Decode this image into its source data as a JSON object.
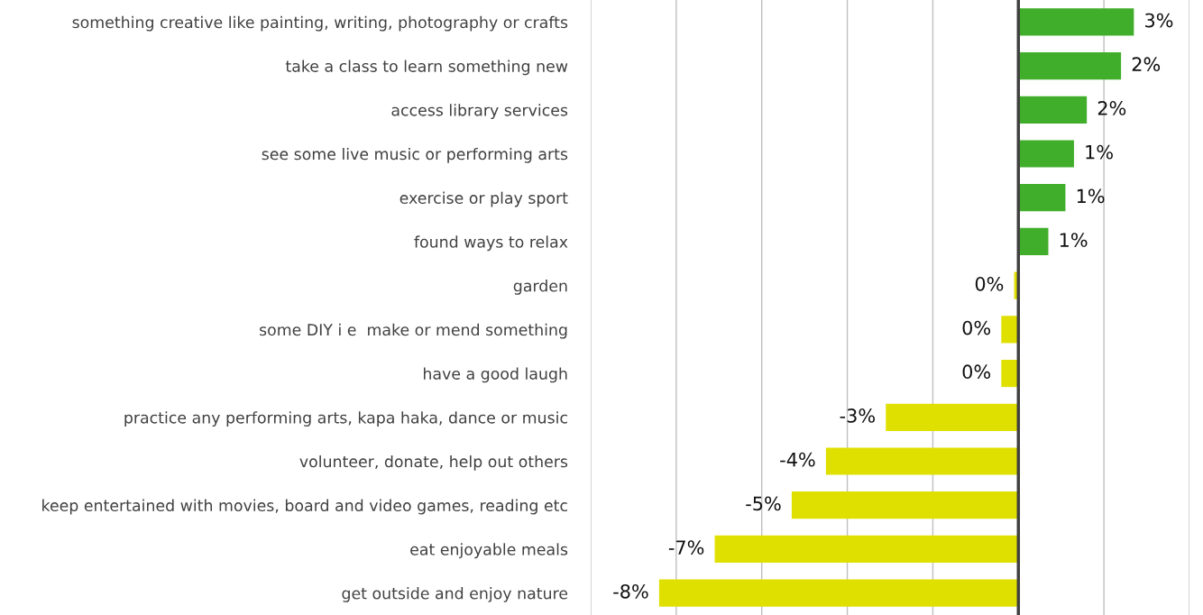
{
  "chart_data": {
    "type": "bar",
    "orientation": "horizontal",
    "categories": [
      "something creative like painting, writing, photography or crafts",
      "take a class to learn something new",
      "access library services",
      "see some live music or performing arts",
      "exercise or play sport",
      "found ways to relax",
      "garden",
      "some DIY i e  make or mend something",
      "have a good laugh",
      "practice any performing arts, kapa haka, dance or music",
      "volunteer, donate, help out others",
      "keep entertained with movies, board and video games, reading etc",
      "eat enjoyable meals",
      "get outside and enjoy nature"
    ],
    "values": [
      2.7,
      2.4,
      1.6,
      1.3,
      1.1,
      0.7,
      -0.1,
      -0.4,
      -0.4,
      -3.1,
      -4.5,
      -5.3,
      -7.1,
      -8.4
    ],
    "value_labels": [
      "3%",
      "2%",
      "2%",
      "1%",
      "1%",
      "1%",
      "0%",
      "0%",
      "0%",
      "-3%",
      "-4%",
      "-5%",
      "-7%",
      "-8%"
    ],
    "colors": [
      "#40ae2a",
      "#40ae2a",
      "#40ae2a",
      "#40ae2a",
      "#40ae2a",
      "#40ae2a",
      "#e0e000",
      "#e0e000",
      "#e0e000",
      "#e0e000",
      "#e0e000",
      "#e0e000",
      "#e0e000",
      "#e0e000"
    ],
    "xlim": [
      -10,
      4
    ],
    "xticks": [
      {
        "value": -10,
        "label": null
      },
      {
        "value": -8,
        "label": null
      },
      {
        "value": -6,
        "label": null
      },
      {
        "value": -4,
        "label": null
      },
      {
        "value": -2,
        "label": null
      },
      {
        "value": 0,
        "label": null
      },
      {
        "value": 2,
        "label": null
      },
      {
        "value": 4,
        "label": null
      }
    ],
    "grid": "x",
    "tick_labels": "y",
    "ref_lines": [
      {
        "axis": "x",
        "value": 0,
        "color": "#404040"
      }
    ]
  }
}
